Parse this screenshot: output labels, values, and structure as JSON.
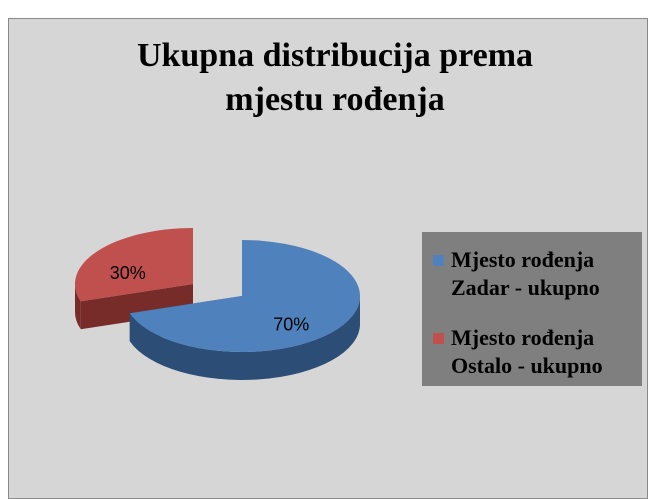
{
  "chart_data": {
    "type": "pie3d",
    "title": "Ukupna distribucija prema mjestu rođenja",
    "series": [
      {
        "name": "Mjesto rođenja Zadar - ukupno",
        "color": "#4f81bd",
        "side_color": "#2c4d75"
      },
      {
        "name": "Mjesto rođenja Ostalo - ukupno",
        "color": "#c0504d",
        "side_color": "#772c2a"
      }
    ],
    "values": [
      70,
      30
    ],
    "value_labels": [
      "70%",
      "30%"
    ],
    "explode": [
      false,
      true
    ],
    "legend": "right"
  }
}
